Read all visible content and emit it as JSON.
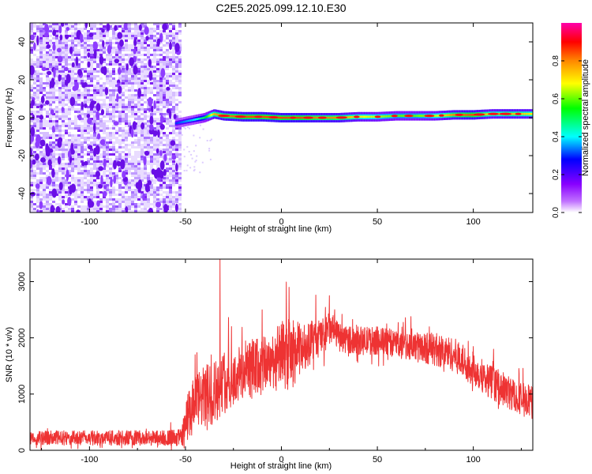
{
  "chart_data": [
    {
      "type": "heatmap",
      "title": "C2E5.2025.099.12.10.E30",
      "xlabel": "Height of straight line (km)",
      "ylabel": "Frequency (Hz)",
      "xlim": [
        -131,
        131
      ],
      "ylim": [
        -50,
        50
      ],
      "xticks": [
        -100,
        -50,
        0,
        50,
        100
      ],
      "yticks": [
        -40,
        -20,
        0,
        20,
        40
      ],
      "colorbar": {
        "label": "Normalized spectral amplitude",
        "range": [
          0,
          1
        ],
        "ticks": [
          "0.0",
          "0.2",
          "0.4",
          "0.6",
          "0.8"
        ],
        "colormap": [
          "#ffffff",
          "#8800ff",
          "#0000ff",
          "#00ffff",
          "#00ff00",
          "#ffff00",
          "#ff8800",
          "#ff0000",
          "#ff00aa"
        ]
      },
      "noise_region": {
        "x_range": [
          -131,
          -53
        ],
        "y_range": [
          -50,
          50
        ],
        "amplitude": 0.1
      },
      "signal_track": {
        "x": [
          -55,
          -50,
          -45,
          -40,
          -35,
          -30,
          -20,
          -10,
          0,
          10,
          20,
          30,
          40,
          50,
          60,
          70,
          80,
          90,
          100,
          110,
          120,
          131
        ],
        "frequency": [
          -3,
          -2,
          -1,
          0,
          2,
          1,
          0.5,
          0.5,
          0,
          0,
          0,
          0,
          0.5,
          0.5,
          1,
          1,
          1,
          1.5,
          1.5,
          2,
          2,
          2
        ],
        "amplitude": [
          0.3,
          0.35,
          0.4,
          0.5,
          0.75,
          0.8,
          0.85,
          0.85,
          0.85,
          0.85,
          0.8,
          0.8,
          0.7,
          0.65,
          0.6,
          0.6,
          0.65,
          0.8,
          0.85,
          0.7,
          0.75,
          0.7
        ]
      },
      "grid": false
    },
    {
      "type": "line",
      "xlabel": "Height of straight line (km)",
      "ylabel": "SNR (10 * v/v)",
      "xlim": [
        -131,
        131
      ],
      "ylim": [
        0,
        3400
      ],
      "xticks": [
        -100,
        -50,
        0,
        50,
        100
      ],
      "yticks": [
        0,
        1000,
        2000,
        3000
      ],
      "color": "#ee3333",
      "envelope": {
        "x": [
          -131,
          -100,
          -60,
          -52,
          -50,
          -47,
          -45,
          -40,
          -35,
          -32,
          -30,
          -25,
          -20,
          -15,
          -10,
          -5,
          0,
          4,
          8,
          10,
          15,
          20,
          25,
          27,
          30,
          40,
          50,
          60,
          70,
          80,
          90,
          100,
          110,
          120,
          131
        ],
        "mean": [
          220,
          220,
          220,
          230,
          450,
          700,
          850,
          950,
          1050,
          1100,
          1200,
          1250,
          1400,
          1450,
          1500,
          1600,
          1700,
          1700,
          1750,
          1800,
          1900,
          2000,
          2150,
          2150,
          2000,
          1950,
          1950,
          1900,
          1850,
          1800,
          1700,
          1450,
          1200,
          1000,
          850
        ],
        "amplitude": [
          130,
          130,
          140,
          150,
          400,
          550,
          500,
          550,
          600,
          500,
          550,
          500,
          550,
          550,
          500,
          500,
          600,
          650,
          550,
          450,
          400,
          350,
          300,
          250,
          250,
          250,
          250,
          250,
          250,
          300,
          300,
          300,
          300,
          300,
          300
        ]
      },
      "peaks": [
        {
          "x": -45,
          "y": 1700
        },
        {
          "x": -32,
          "y": 3400
        },
        {
          "x": -26,
          "y": 2200
        },
        {
          "x": -10,
          "y": 2500
        },
        {
          "x": 4,
          "y": 2900
        },
        {
          "x": 25,
          "y": 2750
        }
      ],
      "grid": false
    }
  ]
}
